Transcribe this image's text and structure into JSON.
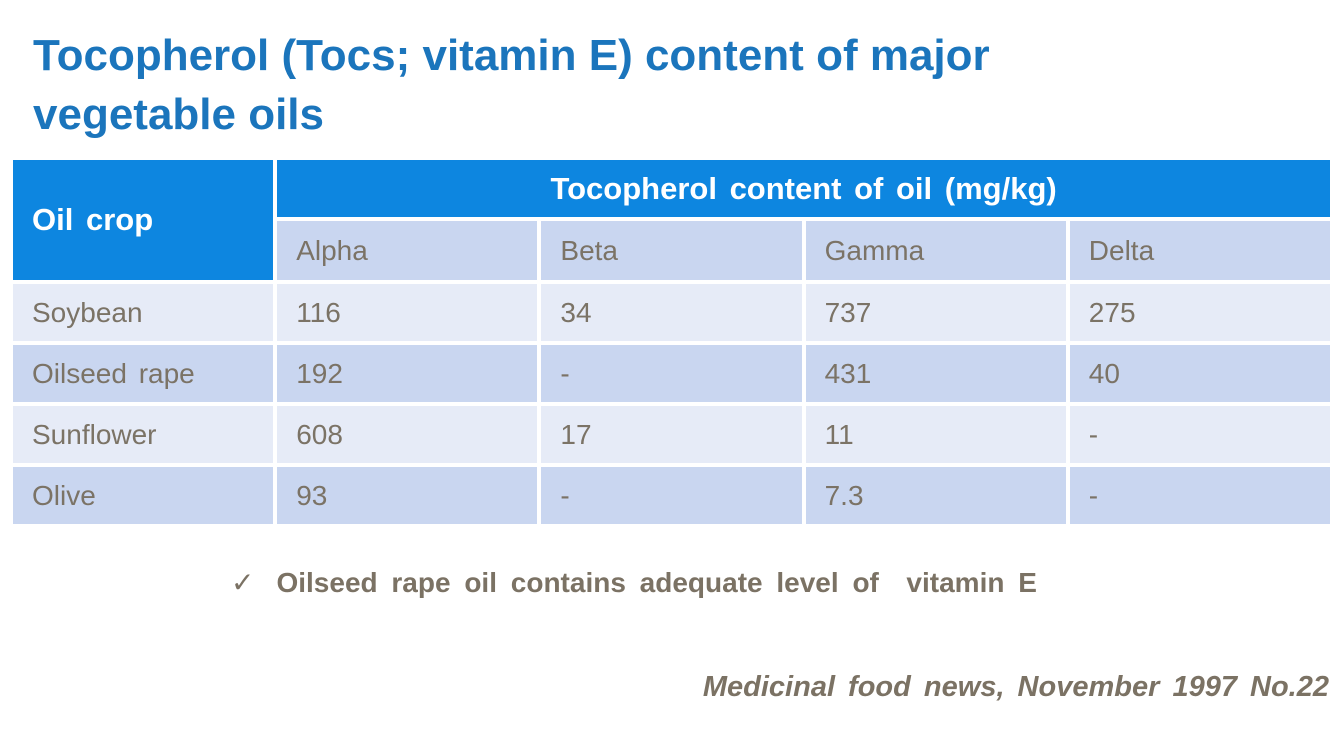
{
  "title": {
    "line1": "Tocopherol (Tocs; vitamin E) content of major",
    "line2": "vegetable oils"
  },
  "table": {
    "corner_header": "Oil crop",
    "group_header": "Tocopherol content of oil (mg/kg)",
    "sub_headers": [
      "Alpha",
      "Beta",
      "Gamma",
      "Delta"
    ],
    "rows": [
      {
        "crop": "Soybean",
        "values": [
          "116",
          "34",
          "737",
          "275"
        ]
      },
      {
        "crop": "Oilseed rape",
        "values": [
          "192",
          "-",
          "431",
          "40"
        ]
      },
      {
        "crop": "Sunflower",
        "values": [
          "608",
          "17",
          "11",
          "-"
        ]
      },
      {
        "crop": "Olive",
        "values": [
          "93",
          "-",
          "7.3",
          "-"
        ]
      }
    ]
  },
  "note": {
    "check_icon": "✓",
    "text": "Oilseed rape oil contains adequate level of  vitamin E"
  },
  "footer": {
    "citation": "Medicinal food news, November 1997 No.22"
  },
  "colors": {
    "title_blue": "#1b75bc",
    "header_blue": "#0d86e0",
    "row_light": "#e6ebf7",
    "row_dark": "#c9d6f0",
    "body_text": "#7b7366"
  },
  "chart_data": {
    "type": "table",
    "title": "Tocopherol (Tocs; vitamin E) content of major vegetable oils",
    "row_header": "Oil crop",
    "column_group": "Tocopherol content of oil (mg/kg)",
    "columns": [
      "Alpha",
      "Beta",
      "Gamma",
      "Delta"
    ],
    "rows": [
      {
        "label": "Soybean",
        "values": [
          116,
          34,
          737,
          275
        ]
      },
      {
        "label": "Oilseed rape",
        "values": [
          192,
          null,
          431,
          40
        ]
      },
      {
        "label": "Sunflower",
        "values": [
          608,
          17,
          11,
          null
        ]
      },
      {
        "label": "Olive",
        "values": [
          93,
          null,
          7.3,
          null
        ]
      }
    ],
    "missing_value_marker": "-"
  }
}
